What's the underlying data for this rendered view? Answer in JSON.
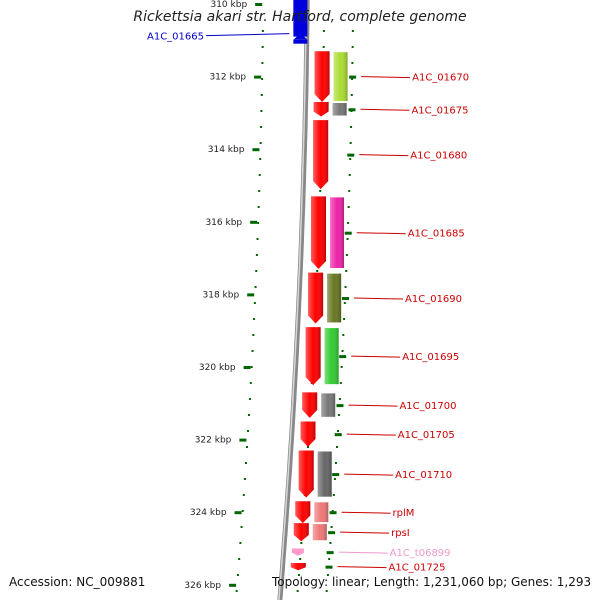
{
  "title": "Rickettsia akari str. Hartford, complete genome",
  "accession": "Accession: NC_009881",
  "summary": "Topology: linear; Length: 1,231,060 bp; Genes: 1,293",
  "ruler": {
    "unit": "kbp",
    "ticks": [
      {
        "label": "310 kbp",
        "kbp": 310
      },
      {
        "label": "312 kbp",
        "kbp": 312
      },
      {
        "label": "314 kbp",
        "kbp": 314
      },
      {
        "label": "316 kbp",
        "kbp": 316
      },
      {
        "label": "318 kbp",
        "kbp": 318
      },
      {
        "label": "320 kbp",
        "kbp": 320
      },
      {
        "label": "322 kbp",
        "kbp": 322
      },
      {
        "label": "324 kbp",
        "kbp": 324
      },
      {
        "label": "326 kbp",
        "kbp": 326
      }
    ]
  },
  "colors": {
    "gene_arrow": "#ff0000",
    "reverse_gene": "#0000dd",
    "backbone": "#888888",
    "tick": "#006600",
    "label": "#cc0000",
    "label_reverse": "#0000cc",
    "label_pseudo": "#ee99cc"
  },
  "genes": [
    {
      "label": "A1C_01665",
      "strand": "reverse",
      "start_kbp": 309.4,
      "end_kbp": 310.9,
      "cog_color": null
    },
    {
      "label": "A1C_01670",
      "strand": "forward",
      "start_kbp": 311.3,
      "end_kbp": 312.7,
      "cog_color": "#aadd33"
    },
    {
      "label": "A1C_01675",
      "strand": "forward",
      "start_kbp": 312.7,
      "end_kbp": 313.1,
      "cog_color": "#777777"
    },
    {
      "label": "A1C_01680",
      "strand": "forward",
      "start_kbp": 313.2,
      "end_kbp": 315.1,
      "cog_color": null
    },
    {
      "label": "A1C_01685",
      "strand": "forward",
      "start_kbp": 315.3,
      "end_kbp": 317.3,
      "cog_color": "#ee22aa"
    },
    {
      "label": "A1C_01690",
      "strand": "forward",
      "start_kbp": 317.4,
      "end_kbp": 318.8,
      "cog_color": "#667722"
    },
    {
      "label": "A1C_01695",
      "strand": "forward",
      "start_kbp": 318.9,
      "end_kbp": 320.5,
      "cog_color": "#33cc33"
    },
    {
      "label": "A1C_01700",
      "strand": "forward",
      "start_kbp": 320.7,
      "end_kbp": 321.4,
      "cog_color": "#777777"
    },
    {
      "label": "A1C_01705",
      "strand": "forward",
      "start_kbp": 321.5,
      "end_kbp": 322.2,
      "cog_color": null
    },
    {
      "label": "A1C_01710",
      "strand": "forward",
      "start_kbp": 322.3,
      "end_kbp": 323.6,
      "cog_color": "#666666"
    },
    {
      "label": "rplM",
      "strand": "forward",
      "start_kbp": 323.7,
      "end_kbp": 324.3,
      "cog_color": "#ee7777"
    },
    {
      "label": "rpsI",
      "strand": "forward",
      "start_kbp": 324.3,
      "end_kbp": 324.8,
      "cog_color": "#ee7777"
    },
    {
      "label": "A1C_t06899",
      "strand": "forward",
      "start_kbp": 325.0,
      "end_kbp": 325.2,
      "cog_color": null,
      "kind": "pseudo"
    },
    {
      "label": "A1C_01725",
      "strand": "forward",
      "start_kbp": 325.4,
      "end_kbp": 325.6,
      "cog_color": null
    }
  ]
}
